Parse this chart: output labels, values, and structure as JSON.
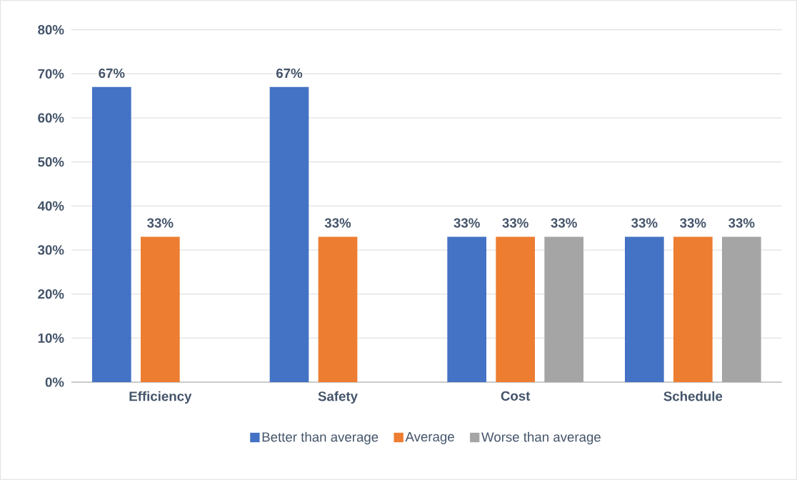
{
  "chart_data": {
    "type": "bar",
    "categories": [
      "Efficiency",
      "Safety",
      "Cost",
      "Schedule"
    ],
    "series": [
      {
        "name": "Better than average",
        "color": "#4472c4",
        "values": [
          67,
          67,
          33,
          33
        ],
        "value_labels": [
          "67%",
          "67%",
          "33%",
          "33%"
        ]
      },
      {
        "name": "Average",
        "color": "#ed7d31",
        "values": [
          33,
          33,
          33,
          33
        ],
        "value_labels": [
          "33%",
          "33%",
          "33%",
          "33%"
        ]
      },
      {
        "name": "Worse than average",
        "color": "#a5a5a5",
        "values": [
          null,
          null,
          33,
          33
        ],
        "value_labels": [
          null,
          null,
          "33%",
          "33%"
        ]
      }
    ],
    "ylim": [
      0,
      80
    ],
    "yticks": [
      {
        "value": 0,
        "label": "0%"
      },
      {
        "value": 10,
        "label": "10%"
      },
      {
        "value": 20,
        "label": "20%"
      },
      {
        "value": 30,
        "label": "30%"
      },
      {
        "value": 40,
        "label": "40%"
      },
      {
        "value": 50,
        "label": "50%"
      },
      {
        "value": 60,
        "label": "60%"
      },
      {
        "value": 70,
        "label": "70%"
      },
      {
        "value": 80,
        "label": "80%"
      }
    ],
    "grid": "y",
    "legend": "bottom"
  }
}
